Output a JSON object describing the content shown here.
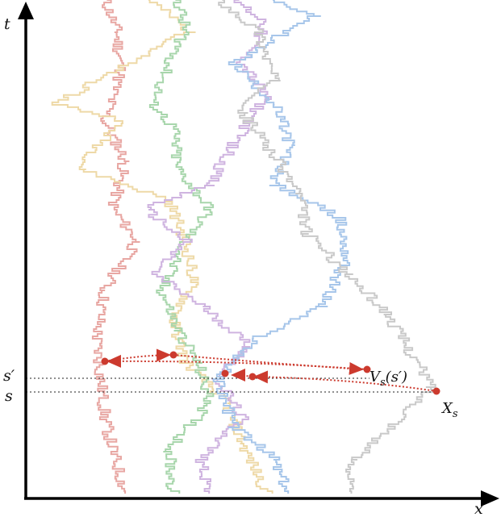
{
  "axes": {
    "t_label": "t",
    "x_label": "x"
  },
  "levels": {
    "s_prime_label": "s′",
    "s_label": "s"
  },
  "annotations": {
    "v_main": "V",
    "v_sub": "s",
    "v_arg": "(s′)",
    "x_main": "X",
    "x_sub": "s"
  },
  "colors": {
    "axis": "#000000",
    "red_path": "#e8a7a3",
    "yellow_path": "#eed9a7",
    "green_path": "#a8d6ac",
    "purple_path": "#cfb4e0",
    "blue_path": "#a7c6ea",
    "gray_path": "#c9c9c9",
    "marker": "#cc3a2e"
  },
  "paths": [
    {
      "name": "red",
      "color_key": "red_path"
    },
    {
      "name": "yellow",
      "color_key": "yellow_path"
    },
    {
      "name": "green",
      "color_key": "green_path"
    },
    {
      "name": "purple",
      "color_key": "purple_path"
    },
    {
      "name": "blue",
      "color_key": "blue_path"
    },
    {
      "name": "gray",
      "color_key": "gray_path"
    }
  ],
  "jumps": [
    {
      "name": "x-s-to-v-s"
    },
    {
      "name": "v-s-to-left"
    },
    {
      "name": "left-to-green"
    },
    {
      "name": "v-to-mid"
    },
    {
      "name": "mid-hop"
    }
  ]
}
